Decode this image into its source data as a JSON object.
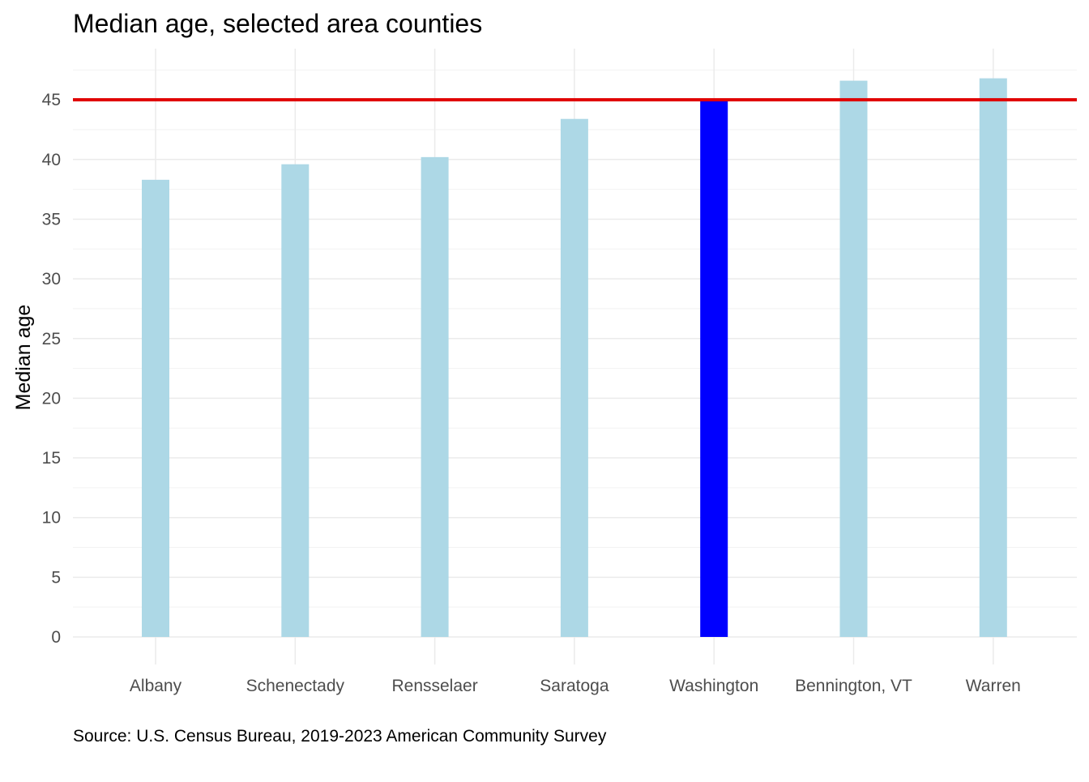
{
  "chart_data": {
    "type": "bar",
    "title": "Median age, selected area counties",
    "xlabel": "",
    "ylabel": "Median age",
    "caption": "Source: U.S. Census Bureau, 2019-2023 American Community Survey",
    "categories": [
      "Albany",
      "Schenectady",
      "Rensselaer",
      "Saratoga",
      "Washington",
      "Bennington, VT",
      "Warren"
    ],
    "values": [
      38.3,
      39.6,
      40.2,
      43.4,
      45.0,
      46.6,
      46.8
    ],
    "highlight": "Washington",
    "bar_color": "#add8e6",
    "highlight_color": "#0000ff",
    "reference_line": {
      "value": 45,
      "color": "#e00000"
    },
    "ylim": [
      0,
      48
    ],
    "yticks": [
      0,
      5,
      10,
      15,
      20,
      25,
      30,
      35,
      40,
      45
    ],
    "grid": true,
    "legend": "none"
  }
}
